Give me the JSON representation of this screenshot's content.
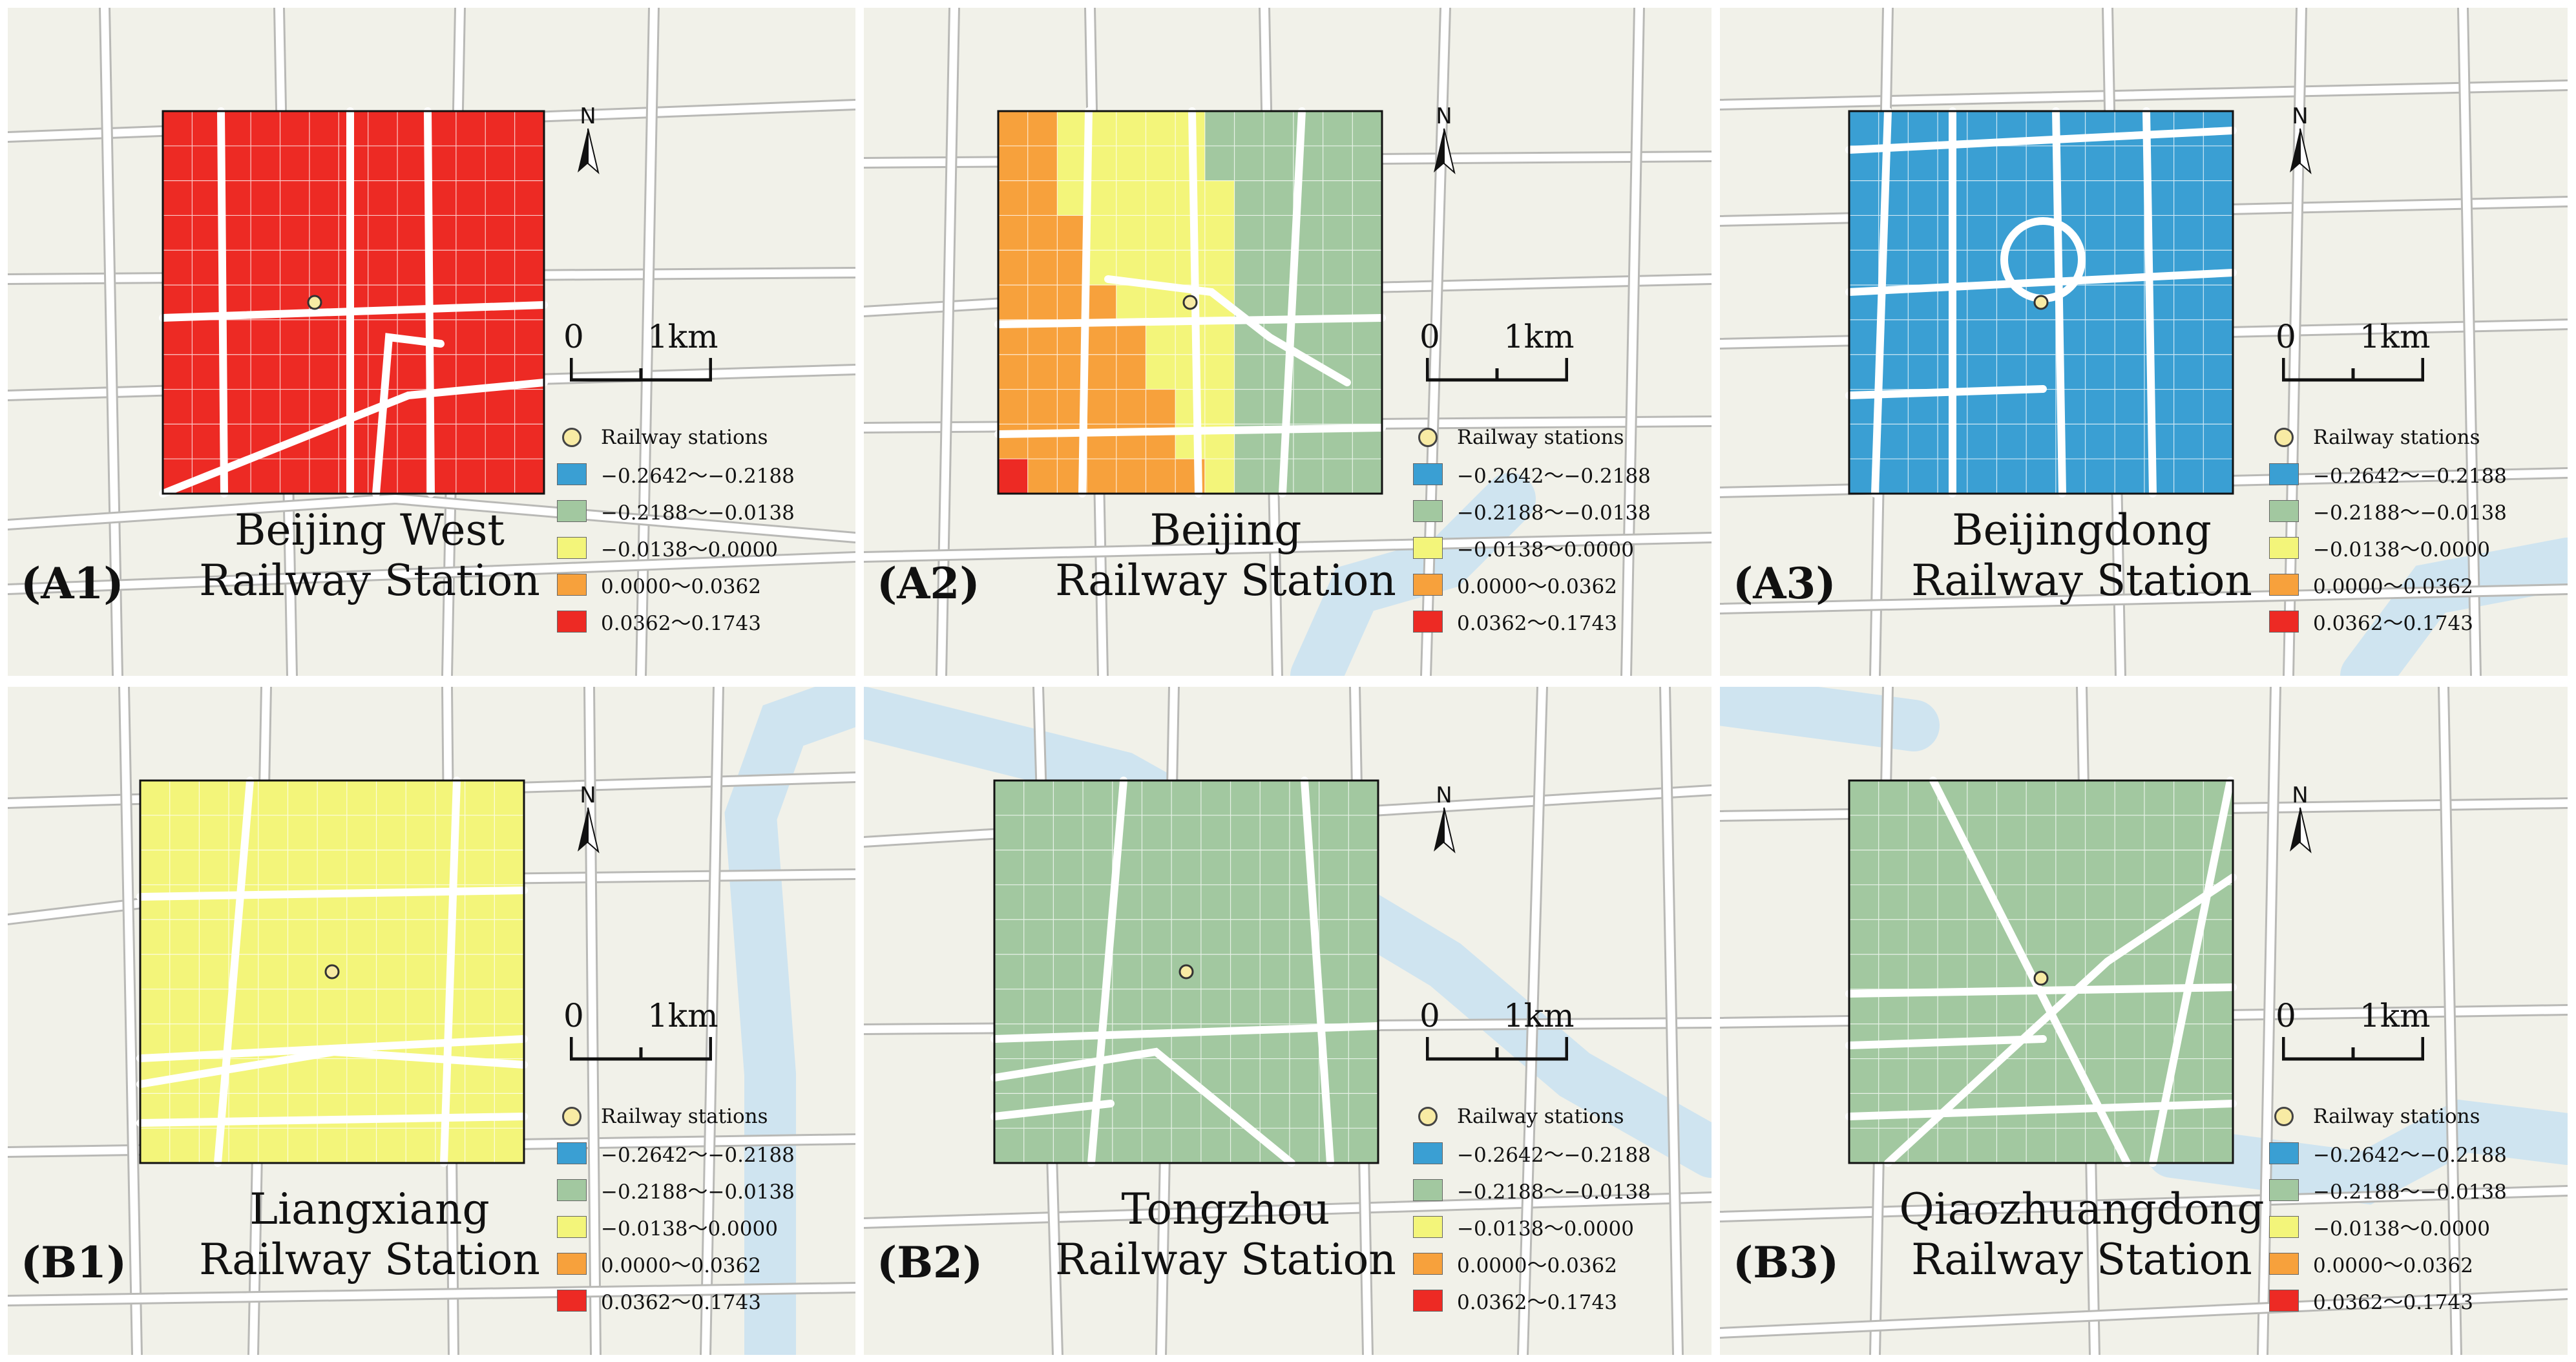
{
  "legend": {
    "station_label": "Railway stations",
    "classes": [
      {
        "label": "−0.2642～−0.2188",
        "color": "#3a9fd3"
      },
      {
        "label": "−0.2188～−0.0138",
        "color": "#a2c8a0"
      },
      {
        "label": "−0.0138～0.0000",
        "color": "#f3f57a"
      },
      {
        "label": "0.0000～0.0362",
        "color": "#f7a13c"
      },
      {
        "label": "0.0362～0.1743",
        "color": "#ed2a24"
      }
    ]
  },
  "scale_bar": {
    "zero_label": "0",
    "distance_label": "1km"
  },
  "north_arrow": {
    "letter": "N",
    "icon": "north-arrow-icon"
  },
  "panels": [
    {
      "id": "A1",
      "label": "(A1)",
      "title_line1": "Beijing West",
      "title_line2": "Railway Station",
      "fill_class": 4
    },
    {
      "id": "A2",
      "label": "(A2)",
      "title_line1": "Beijing",
      "title_line2": "Railway Station",
      "fill_class": "mixed"
    },
    {
      "id": "A3",
      "label": "(A3)",
      "title_line1": "Beijingdong",
      "title_line2": "Railway Station",
      "fill_class": 0
    },
    {
      "id": "B1",
      "label": "(B1)",
      "title_line1": "Liangxiang",
      "title_line2": "Railway Station",
      "fill_class": 2
    },
    {
      "id": "B2",
      "label": "(B2)",
      "title_line1": "Tongzhou",
      "title_line2": "Railway Station",
      "fill_class": 1
    },
    {
      "id": "B3",
      "label": "(B3)",
      "title_line1": "Qiaozhuangdong",
      "title_line2": "Railway Station",
      "fill_class": 1
    }
  ],
  "colors": {
    "background": "#f1f1e9",
    "road": "#ffffff",
    "road_casing": "#b9b9b6",
    "water": "#cfe4f0",
    "station": "#f8eba4"
  }
}
